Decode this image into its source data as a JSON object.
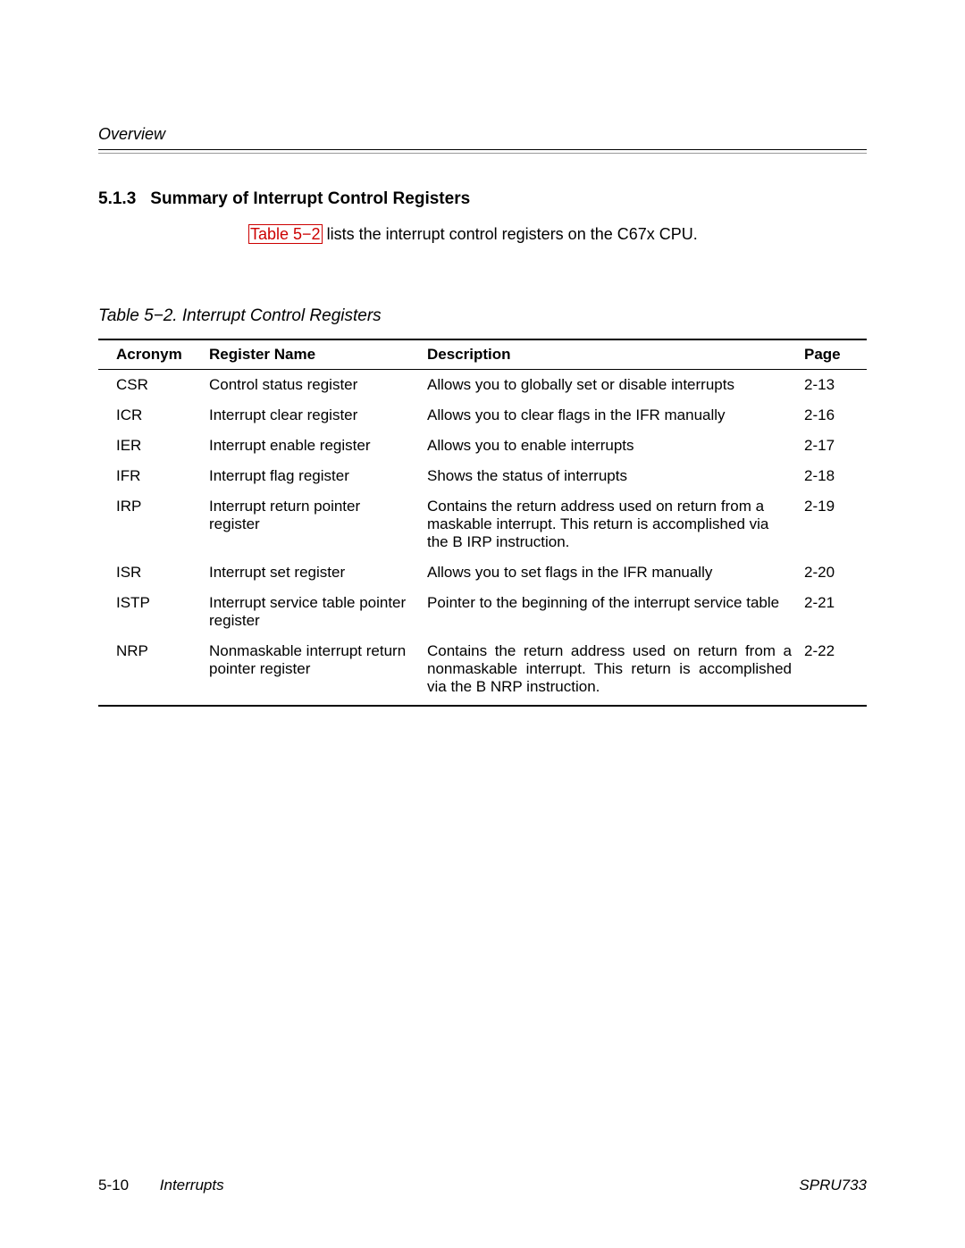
{
  "header": {
    "label": "Overview"
  },
  "section": {
    "number": "5.1.3",
    "title": "Summary of Interrupt Control Registers"
  },
  "intro": {
    "link_text": "Table 5−2",
    "rest": " lists the interrupt control registers on the C67x CPU."
  },
  "table": {
    "caption": "Table 5−2.  Interrupt Control Registers",
    "columns": [
      "Acronym",
      "Register Name",
      "Description",
      "Page"
    ],
    "rows": [
      {
        "acronym": "CSR",
        "name": "Control status register",
        "desc": "Allows you to globally set or disable interrupts",
        "page": "2-13",
        "justify": false
      },
      {
        "acronym": "ICR",
        "name": "Interrupt clear register",
        "desc": "Allows you to clear flags in the IFR manually",
        "page": "2-16",
        "justify": false
      },
      {
        "acronym": "IER",
        "name": "Interrupt enable register",
        "desc": "Allows you to enable interrupts",
        "page": "2-17",
        "justify": false
      },
      {
        "acronym": "IFR",
        "name": "Interrupt flag register",
        "desc": "Shows the status of interrupts",
        "page": "2-18",
        "justify": false
      },
      {
        "acronym": "IRP",
        "name": "Interrupt return pointer register",
        "desc": "Contains the return address used on return from a maskable interrupt. This return is accomplished via the B IRP instruction.",
        "page": "2-19",
        "justify": false
      },
      {
        "acronym": "ISR",
        "name": "Interrupt set register",
        "desc": "Allows you to set flags in the IFR manually",
        "page": "2-20",
        "justify": false
      },
      {
        "acronym": "ISTP",
        "name": "Interrupt service table pointer register",
        "desc": "Pointer to the beginning of the interrupt service table",
        "page": "2-21",
        "justify": true
      },
      {
        "acronym": "NRP",
        "name": "Nonmaskable interrupt return pointer register",
        "desc": "Contains the return address used on return from a nonmaskable interrupt. This return is accomplished via the B NRP instruction.",
        "page": "2-22",
        "justify": true
      }
    ]
  },
  "footer": {
    "page_number": "5-10",
    "chapter": "Interrupts",
    "docid": "SPRU733"
  },
  "colors": {
    "link": "#cc0000",
    "text": "#000000",
    "background": "#ffffff"
  }
}
